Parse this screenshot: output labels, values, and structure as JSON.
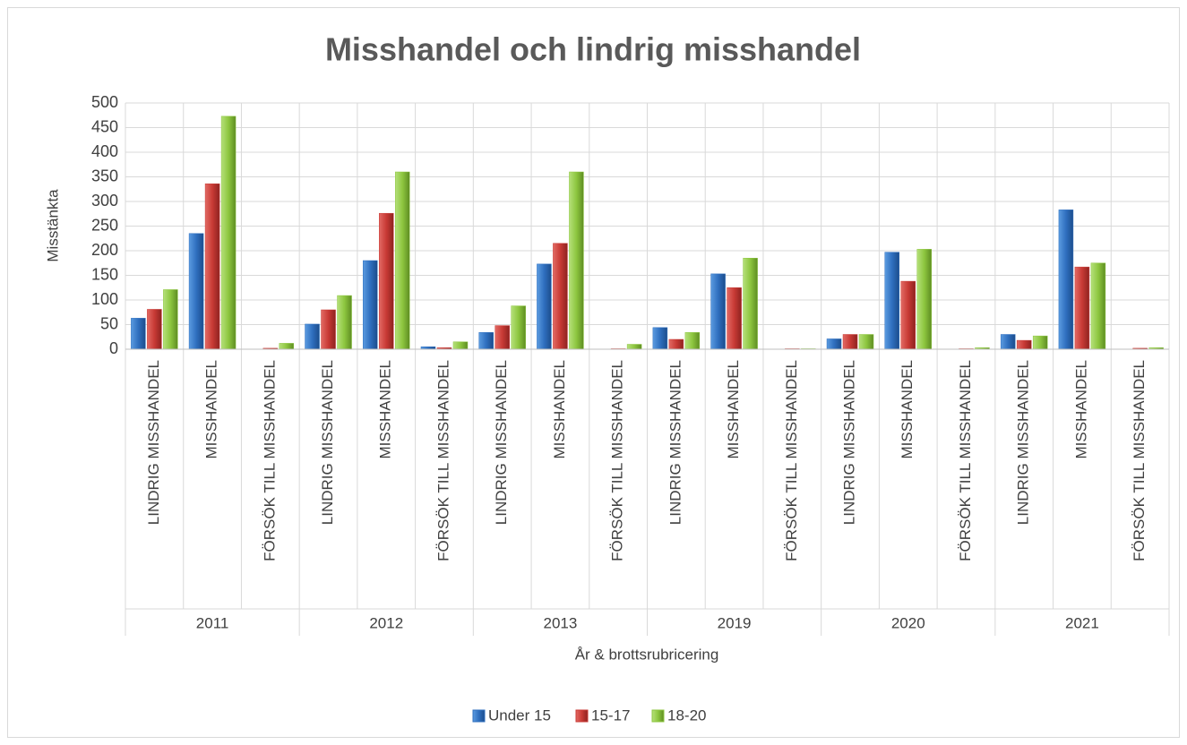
{
  "chart_data": {
    "type": "bar",
    "title": "Misshandel och lindrig misshandel",
    "x_label": "År & brottsrubricering",
    "y_label": "Misstänkta",
    "categories": [
      "LINDRIG MISSHANDEL",
      "MISSHANDEL",
      "FÖRSÖK TILL MISSHANDEL",
      "LINDRIG MISSHANDEL",
      "MISSHANDEL",
      "FÖRSÖK TILL MISSHANDEL",
      "LINDRIG MISSHANDEL",
      "MISSHANDEL",
      "FÖRSÖK TILL MISSHANDEL",
      "LINDRIG MISSHANDEL",
      "MISSHANDEL",
      "FÖRSÖK TILL MISSHANDEL",
      "LINDRIG MISSHANDEL",
      "MISSHANDEL",
      "FÖRSÖK TILL MISSHANDEL",
      "LINDRIG MISSHANDEL",
      "MISSHANDEL",
      "FÖRSÖK TILL MISSHANDEL"
    ],
    "groups": [
      "2011",
      "2012",
      "2013",
      "2019",
      "2020",
      "2021"
    ],
    "series": [
      {
        "name": "Under 15",
        "color": "#2f6fbf",
        "values": [
          63,
          235,
          0,
          51,
          180,
          5,
          34,
          173,
          0,
          44,
          153,
          0,
          21,
          197,
          0,
          30,
          283,
          0
        ]
      },
      {
        "name": "15-17",
        "color": "#c83a35",
        "values": [
          81,
          336,
          2,
          80,
          276,
          3,
          48,
          215,
          1,
          20,
          125,
          1,
          30,
          138,
          1,
          18,
          167,
          2
        ]
      },
      {
        "name": "18-20",
        "color": "#8dc63f",
        "values": [
          121,
          473,
          12,
          109,
          360,
          15,
          88,
          360,
          10,
          34,
          185,
          1,
          30,
          203,
          3,
          27,
          175,
          3
        ]
      }
    ],
    "ylim": [
      0,
      500
    ],
    "yticks": [
      0,
      50,
      100,
      150,
      200,
      250,
      300,
      350,
      400,
      450,
      500
    ],
    "grid": true,
    "legend": "bottom"
  }
}
